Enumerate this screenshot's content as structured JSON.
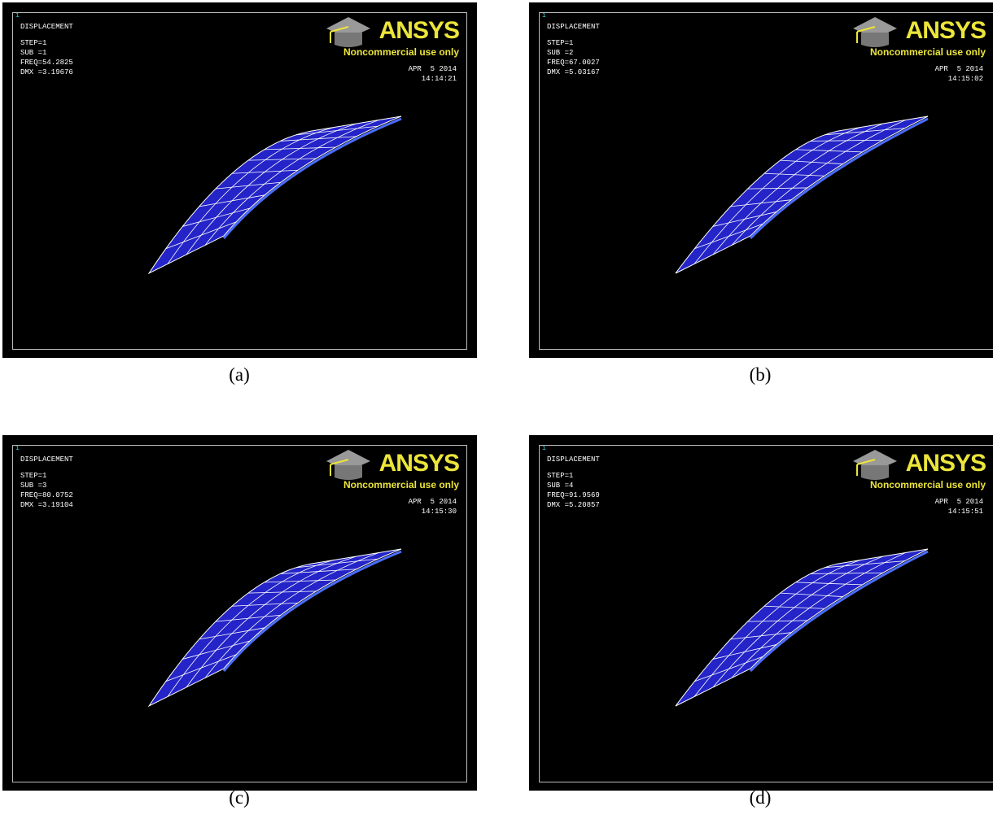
{
  "panels": [
    {
      "window_number": "1",
      "title": "DISPLACEMENT",
      "step": "STEP=1",
      "sub": "SUB =1",
      "freq": "FREQ=54.2825",
      "dmx": "DMX =3.19676",
      "logo": "ANSYS",
      "logo_subtitle": "Noncommercial use only",
      "date": "APR  5 2014",
      "time": "14:14:21",
      "caption": "(a)"
    },
    {
      "window_number": "1",
      "title": "DISPLACEMENT",
      "step": "STEP=1",
      "sub": "SUB =2",
      "freq": "FREQ=67.0027",
      "dmx": "DMX =5.03167",
      "logo": "ANSYS",
      "logo_subtitle": "Noncommercial use only",
      "date": "APR  5 2014",
      "time": "14:15:02",
      "caption": "(b)"
    },
    {
      "window_number": "1",
      "title": "DISPLACEMENT",
      "step": "STEP=1",
      "sub": "SUB =3",
      "freq": "FREQ=80.0752",
      "dmx": "DMX =3.19104",
      "logo": "ANSYS",
      "logo_subtitle": "Noncommercial use only",
      "date": "APR  5 2014",
      "time": "14:15:30",
      "caption": "(c)"
    },
    {
      "window_number": "1",
      "title": "DISPLACEMENT",
      "step": "STEP=1",
      "sub": "SUB =4",
      "freq": "FREQ=91.9569",
      "dmx": "DMX =5.20857",
      "logo": "ANSYS",
      "logo_subtitle": "Noncommercial use only",
      "date": "APR  5 2014",
      "time": "14:15:51",
      "caption": "(d)"
    }
  ]
}
